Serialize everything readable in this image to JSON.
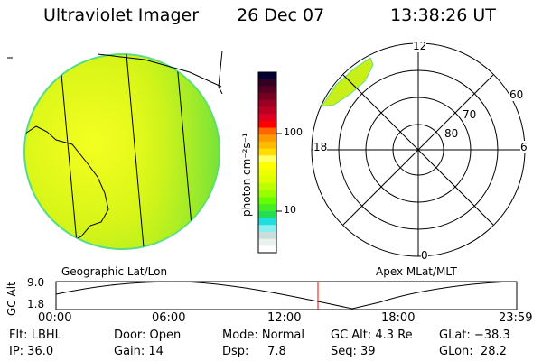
{
  "header": {
    "title": "Ultraviolet Imager",
    "date": "26 Dec 07",
    "time": "13:38:26 UT"
  },
  "colorbar": {
    "label": "photon cm⁻²s⁻¹",
    "ticks": [
      "100",
      "10"
    ],
    "colors": [
      "#000033",
      "#330022",
      "#550022",
      "#770022",
      "#990022",
      "#bb0022",
      "#dd0022",
      "#ff0000",
      "#ff6600",
      "#ff9900",
      "#ffbb00",
      "#ffdd00",
      "#ffff66",
      "#ffff00",
      "#eeff00",
      "#ddff00",
      "#bbff00",
      "#99ff00",
      "#66ff00",
      "#44ee22",
      "#22dd55",
      "#22dddd",
      "#88eeee",
      "#ccdddd",
      "#e8f2ec",
      "#ffffff"
    ]
  },
  "left_map": {
    "label": "Geographic Lat/Lon"
  },
  "polar": {
    "label": "Apex MLat/MLT",
    "mlt_labels": {
      "top": "12",
      "left": "18",
      "right": "6",
      "bottom": "0"
    },
    "lat_labels": [
      "60",
      "70",
      "80"
    ]
  },
  "timeline": {
    "ylabel": "GC Alt",
    "yticks": [
      "9.0",
      "1.8"
    ],
    "xticks": [
      "00:00",
      "06:00",
      "12:00",
      "18:00",
      "23:59"
    ],
    "marker_color": "#ff0000"
  },
  "info": {
    "row1": [
      "Flt: LBHL",
      "Door: Open",
      "Mode: Normal",
      "GC Alt: 4.3 Re",
      "GLat: −38.3"
    ],
    "row2": [
      "IP: 36.0",
      "Gain: 14",
      "Dsp:     7.8",
      "Seq: 39",
      "GLon:  28.2"
    ]
  }
}
